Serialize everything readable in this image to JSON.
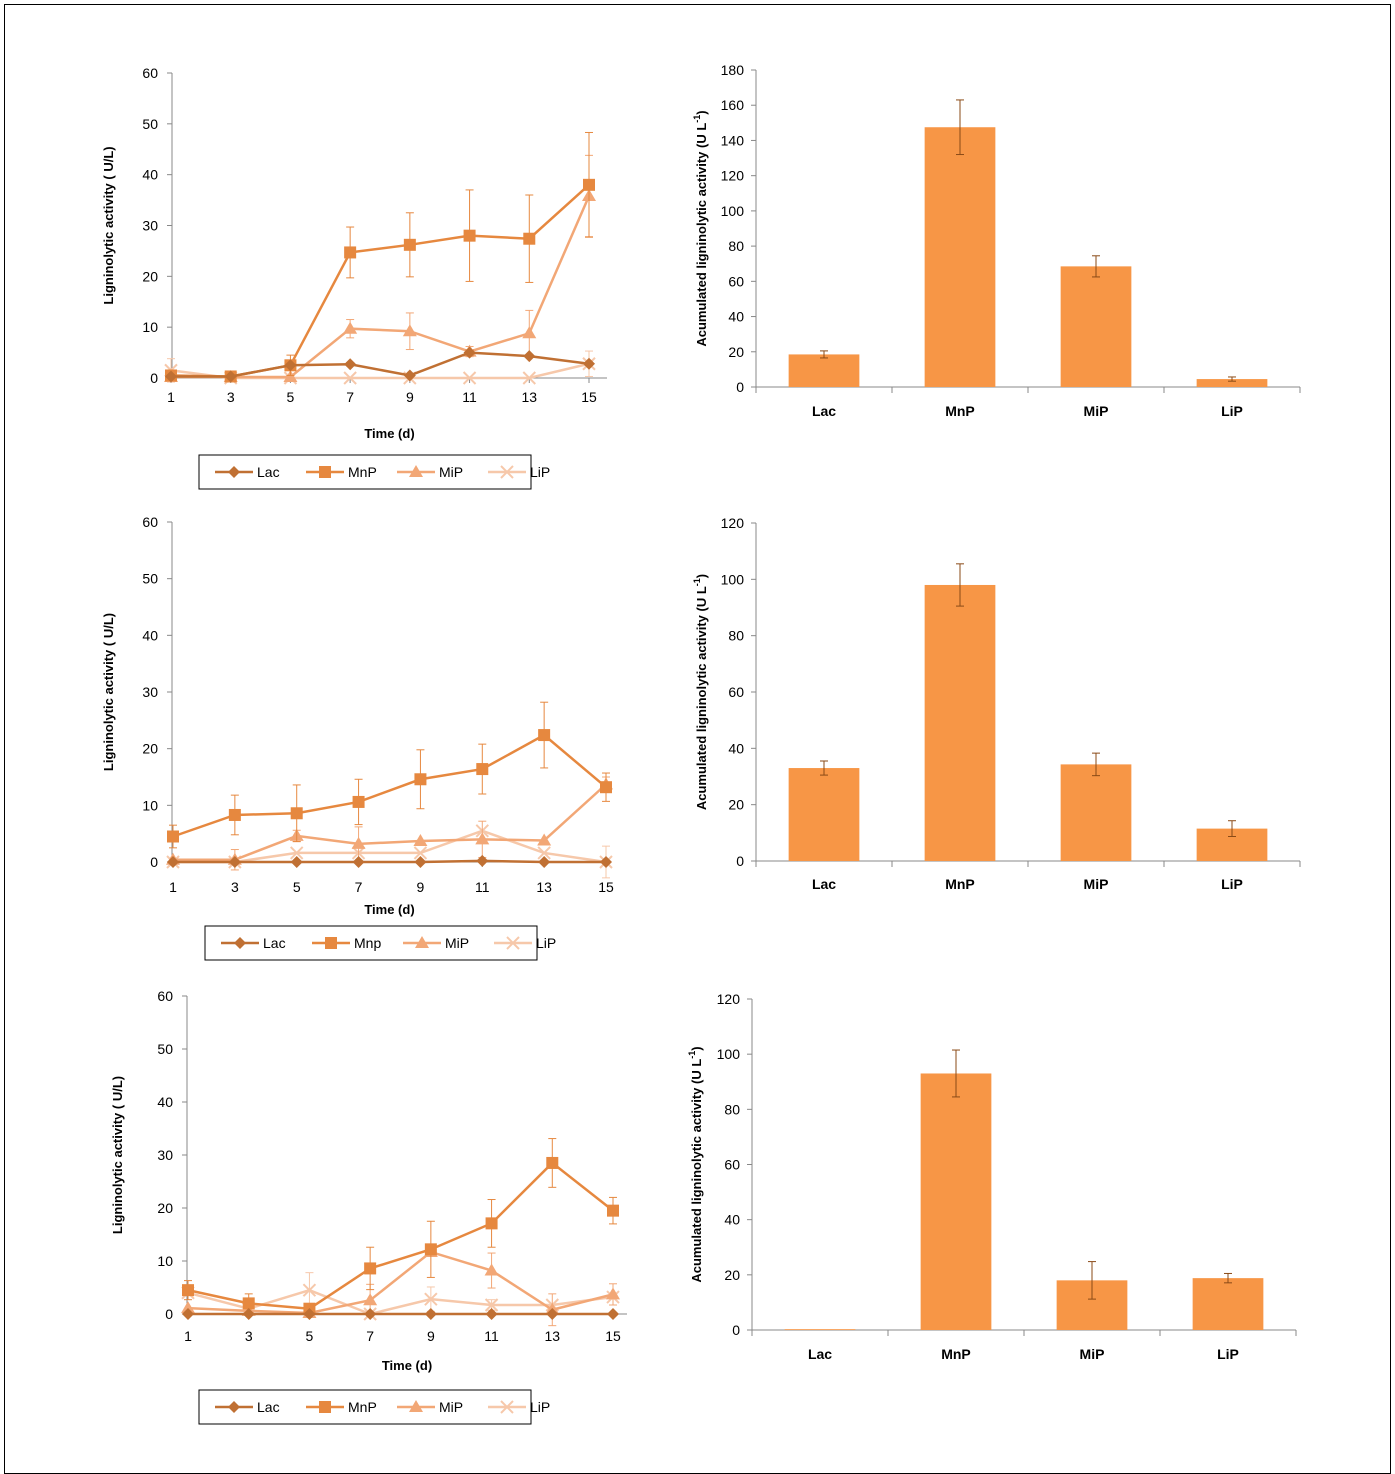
{
  "colors": {
    "Lac": "#c07033",
    "MnP": "#e6883f",
    "MiP": "#f2a776",
    "LiP": "#f6c8aa",
    "bar": "#f79646",
    "errorbar": "#8a4a16"
  },
  "chart_data": [
    {
      "type": "line",
      "xlabel": "Time (d)",
      "ylabel": "Ligninolytic activity ( U/L)",
      "ylim": [
        0,
        60
      ],
      "yticks": [
        0,
        10,
        20,
        30,
        40,
        50,
        60
      ],
      "x": [
        1,
        3,
        5,
        7,
        9,
        11,
        13,
        15
      ],
      "legend_position": "bottom",
      "series": [
        {
          "name": "Lac",
          "marker": "diamond",
          "values": [
            0.3,
            0.3,
            2.5,
            2.7,
            0.5,
            5.0,
            4.3,
            2.8
          ],
          "errors": [
            0,
            0,
            0.3,
            0.3,
            0,
            0.5,
            0,
            0.3
          ]
        },
        {
          "name": "MnP",
          "marker": "square",
          "values": [
            0.5,
            0.3,
            2.5,
            24.7,
            26.2,
            28.0,
            27.4,
            38.0
          ],
          "errors": [
            0,
            0,
            2.0,
            5.0,
            6.3,
            9.0,
            8.6,
            10.3
          ]
        },
        {
          "name": "MiP",
          "marker": "triangle",
          "values": [
            0.2,
            0.2,
            0.2,
            9.7,
            9.2,
            5.2,
            8.8,
            35.8
          ],
          "errors": [
            0,
            0,
            0,
            1.8,
            3.6,
            1.0,
            4.5,
            8.0
          ]
        },
        {
          "name": "LiP",
          "marker": "x",
          "values": [
            1.5,
            0.0,
            0.0,
            0.0,
            0.0,
            0.0,
            0.0,
            2.8
          ],
          "errors": [
            2.3,
            0,
            0,
            0,
            0,
            0,
            0,
            2.5
          ]
        }
      ]
    },
    {
      "type": "bar",
      "xlabel": "",
      "ylabel": "Acumulated ligninolytic activity (U L",
      "ylabel_sup": "-1",
      "ylabel_end": ")",
      "categories": [
        "Lac",
        "MnP",
        "MiP",
        "LiP"
      ],
      "values": [
        18.5,
        147.5,
        68.5,
        4.5
      ],
      "errors": [
        2.0,
        15.5,
        6.0,
        1.2
      ],
      "ylim": [
        0,
        180
      ],
      "yticks": [
        0,
        20,
        40,
        60,
        80,
        100,
        120,
        140,
        160,
        180
      ]
    },
    {
      "type": "line",
      "xlabel": "Time (d)",
      "ylabel": "Ligninolytic activity ( U/L)",
      "ylim": [
        0,
        60
      ],
      "yticks": [
        0,
        10,
        20,
        30,
        40,
        50,
        60
      ],
      "x": [
        1,
        3,
        5,
        7,
        9,
        11,
        13,
        15
      ],
      "legend_position": "bottom",
      "series": [
        {
          "name": "Lac",
          "marker": "diamond",
          "values": [
            0.0,
            0.0,
            0.0,
            0.0,
            0.0,
            0.2,
            0.0,
            0.0
          ],
          "errors": [
            0,
            0,
            0,
            0,
            0,
            0,
            0,
            0
          ]
        },
        {
          "name": "Mnp",
          "marker": "square",
          "values": [
            4.5,
            8.3,
            8.6,
            10.6,
            14.6,
            16.4,
            22.4,
            13.2
          ],
          "errors": [
            2.0,
            3.5,
            5.0,
            4.0,
            5.2,
            4.4,
            5.8,
            2.5
          ]
        },
        {
          "name": "MiP",
          "marker": "triangle",
          "values": [
            0.4,
            0.4,
            4.6,
            3.2,
            3.7,
            4.0,
            3.8,
            13.7
          ],
          "errors": [
            0,
            1.8,
            1.0,
            3.0,
            0,
            3.2,
            0,
            1.3
          ]
        },
        {
          "name": "LiP",
          "marker": "x",
          "values": [
            0.0,
            0.0,
            1.6,
            1.6,
            1.6,
            5.5,
            1.6,
            0.0
          ],
          "errors": [
            0,
            0,
            0,
            0,
            0,
            0,
            0,
            2.8
          ]
        }
      ]
    },
    {
      "type": "bar",
      "xlabel": "",
      "ylabel": "Acumulated ligninolytic activity (U L",
      "ylabel_sup": "-1",
      "ylabel_end": ")",
      "categories": [
        "Lac",
        "MnP",
        "MiP",
        "LiP"
      ],
      "values": [
        33.0,
        98.0,
        34.3,
        11.5
      ],
      "errors": [
        2.5,
        7.5,
        4.0,
        2.8
      ],
      "ylim": [
        0,
        120
      ],
      "yticks": [
        0,
        20,
        40,
        60,
        80,
        100,
        120
      ]
    },
    {
      "type": "line",
      "xlabel": "Time (d)",
      "ylabel": "Ligninolytic activity ( U/L)",
      "ylim": [
        0,
        60
      ],
      "yticks": [
        0,
        10,
        20,
        30,
        40,
        50,
        60
      ],
      "x": [
        1,
        3,
        5,
        7,
        9,
        11,
        13,
        15
      ],
      "legend_position": "bottom",
      "series": [
        {
          "name": "Lac",
          "marker": "diamond",
          "values": [
            0.0,
            0.0,
            0.0,
            0.0,
            0.0,
            0.0,
            0.0,
            0.0
          ],
          "errors": [
            0,
            0,
            0,
            0,
            0,
            0,
            0,
            0
          ]
        },
        {
          "name": "MnP",
          "marker": "square",
          "values": [
            4.5,
            2.0,
            1.0,
            8.6,
            12.2,
            17.1,
            28.5,
            19.5
          ],
          "errors": [
            1.8,
            1.8,
            0,
            4.0,
            5.3,
            4.5,
            4.6,
            2.5
          ]
        },
        {
          "name": "MiP",
          "marker": "triangle",
          "values": [
            1.1,
            0.6,
            0.2,
            2.6,
            11.7,
            8.2,
            0.8,
            3.7
          ],
          "errors": [
            0,
            0,
            0,
            3.0,
            0,
            3.3,
            3.0,
            2.0
          ]
        },
        {
          "name": "LiP",
          "marker": "x",
          "values": [
            4.0,
            1.0,
            4.5,
            0.0,
            2.8,
            1.7,
            1.7,
            3.2
          ],
          "errors": [
            0,
            0,
            3.3,
            0,
            2.3,
            1.0,
            0,
            0
          ]
        }
      ]
    },
    {
      "type": "bar",
      "xlabel": "",
      "ylabel": "Acumulated ligninolytic activity (U L",
      "ylabel_sup": "-1",
      "ylabel_end": ")",
      "categories": [
        "Lac",
        "MnP",
        "MiP",
        "LiP"
      ],
      "values": [
        0.3,
        93.0,
        18.0,
        18.8
      ],
      "errors": [
        0,
        8.5,
        6.8,
        1.7
      ],
      "ylim": [
        0,
        120
      ],
      "yticks": [
        0,
        20,
        40,
        60,
        80,
        100,
        120
      ]
    }
  ]
}
